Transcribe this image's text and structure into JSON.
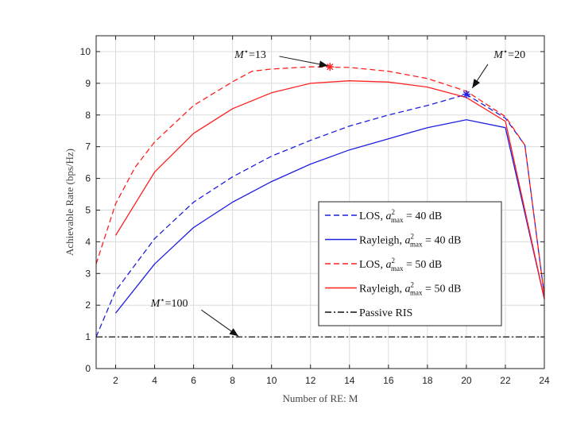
{
  "chart_data": {
    "type": "line",
    "xlabel": "Number of RE: M",
    "ylabel": "Achievable Rate (bps/Hz)",
    "xlim": [
      1,
      24
    ],
    "ylim": [
      0,
      10.5
    ],
    "xticks": [
      2,
      4,
      6,
      8,
      10,
      12,
      14,
      16,
      18,
      20,
      22,
      24
    ],
    "yticks": [
      0,
      1,
      2,
      3,
      4,
      5,
      6,
      7,
      8,
      9,
      10
    ],
    "grid": true,
    "legend_position": "center-right",
    "series": [
      {
        "name": "LOS, a²max = 40 dB",
        "legend_label_main": "LOS, ",
        "legend_label_sym": "a",
        "legend_label_sup": "2",
        "legend_label_sub": "max",
        "legend_label_tail": " = 40 dB",
        "color": "#1f1fe0",
        "style": "dashed",
        "x": [
          1,
          2,
          4,
          6,
          8,
          10,
          12,
          14,
          16,
          18,
          20,
          22,
          23,
          24
        ],
        "y": [
          1.0,
          2.45,
          4.1,
          5.25,
          6.05,
          6.7,
          7.2,
          7.65,
          8.0,
          8.3,
          8.65,
          7.9,
          7.05,
          2.3
        ]
      },
      {
        "name": "Rayleigh, a²max = 40 dB",
        "legend_label_main": "Rayleigh, ",
        "legend_label_sym": "a",
        "legend_label_sup": "2",
        "legend_label_sub": "max",
        "legend_label_tail": " = 40 dB",
        "color": "#1f1fe0",
        "style": "solid",
        "x": [
          2,
          4,
          6,
          8,
          10,
          12,
          14,
          16,
          18,
          20,
          22,
          24
        ],
        "y": [
          1.75,
          3.3,
          4.45,
          5.25,
          5.9,
          6.45,
          6.9,
          7.25,
          7.6,
          7.85,
          7.6,
          2.2
        ]
      },
      {
        "name": "LOS, a²max = 50 dB",
        "legend_label_main": "LOS, ",
        "legend_label_sym": "a",
        "legend_label_sup": "2",
        "legend_label_sub": "max",
        "legend_label_tail": " = 50 dB",
        "color": "#ff2020",
        "style": "dashed",
        "x": [
          1,
          2,
          3,
          4,
          6,
          8,
          9,
          10,
          12,
          14,
          16,
          18,
          20,
          22,
          23,
          24
        ],
        "y": [
          3.3,
          5.2,
          6.35,
          7.15,
          8.3,
          9.05,
          9.38,
          9.45,
          9.52,
          9.5,
          9.38,
          9.15,
          8.75,
          7.95,
          7.05,
          2.3
        ]
      },
      {
        "name": "Rayleigh, a²max = 50 dB",
        "legend_label_main": "Rayleigh, ",
        "legend_label_sym": "a",
        "legend_label_sup": "2",
        "legend_label_sub": "max",
        "legend_label_tail": " = 50 dB",
        "color": "#ff2020",
        "style": "solid",
        "x": [
          2,
          4,
          6,
          8,
          10,
          12,
          14,
          16,
          18,
          20,
          22,
          24
        ],
        "y": [
          4.2,
          6.2,
          7.42,
          8.2,
          8.7,
          9.0,
          9.08,
          9.04,
          8.88,
          8.55,
          7.8,
          2.2
        ]
      },
      {
        "name": "Passive RIS",
        "legend_label_main": "Passive RIS",
        "color": "#111111",
        "style": "dashdot",
        "x": [
          1,
          24
        ],
        "y": [
          1.0,
          1.0
        ]
      }
    ],
    "markers": [
      {
        "name": "optimum-los-50",
        "x": 13,
        "y": 9.52,
        "symbol": "*",
        "color": "#ff2020"
      },
      {
        "name": "optimum-los-40",
        "x": 20,
        "y": 8.65,
        "symbol": "*",
        "color": "#1f1fe0"
      }
    ],
    "annotations": [
      {
        "id": "m13",
        "sym": "M",
        "sup": "⋆",
        "rest": "=13",
        "text_x": 8.1,
        "text_y": 9.8,
        "arrow_from": [
          10.4,
          9.85
        ],
        "arrow_to": [
          12.9,
          9.55
        ]
      },
      {
        "id": "m20",
        "sym": "M",
        "sup": "⋆",
        "rest": "=20",
        "text_x": 21.4,
        "text_y": 9.8,
        "arrow_from": [
          21.1,
          9.6
        ],
        "arrow_to": [
          20.3,
          8.85
        ]
      },
      {
        "id": "m100",
        "sym": "M",
        "sup": "⋆",
        "rest": "=100",
        "text_x": 3.8,
        "text_y": 1.95,
        "arrow_from": [
          6.4,
          1.85
        ],
        "arrow_to": [
          8.3,
          1.02
        ]
      }
    ]
  }
}
